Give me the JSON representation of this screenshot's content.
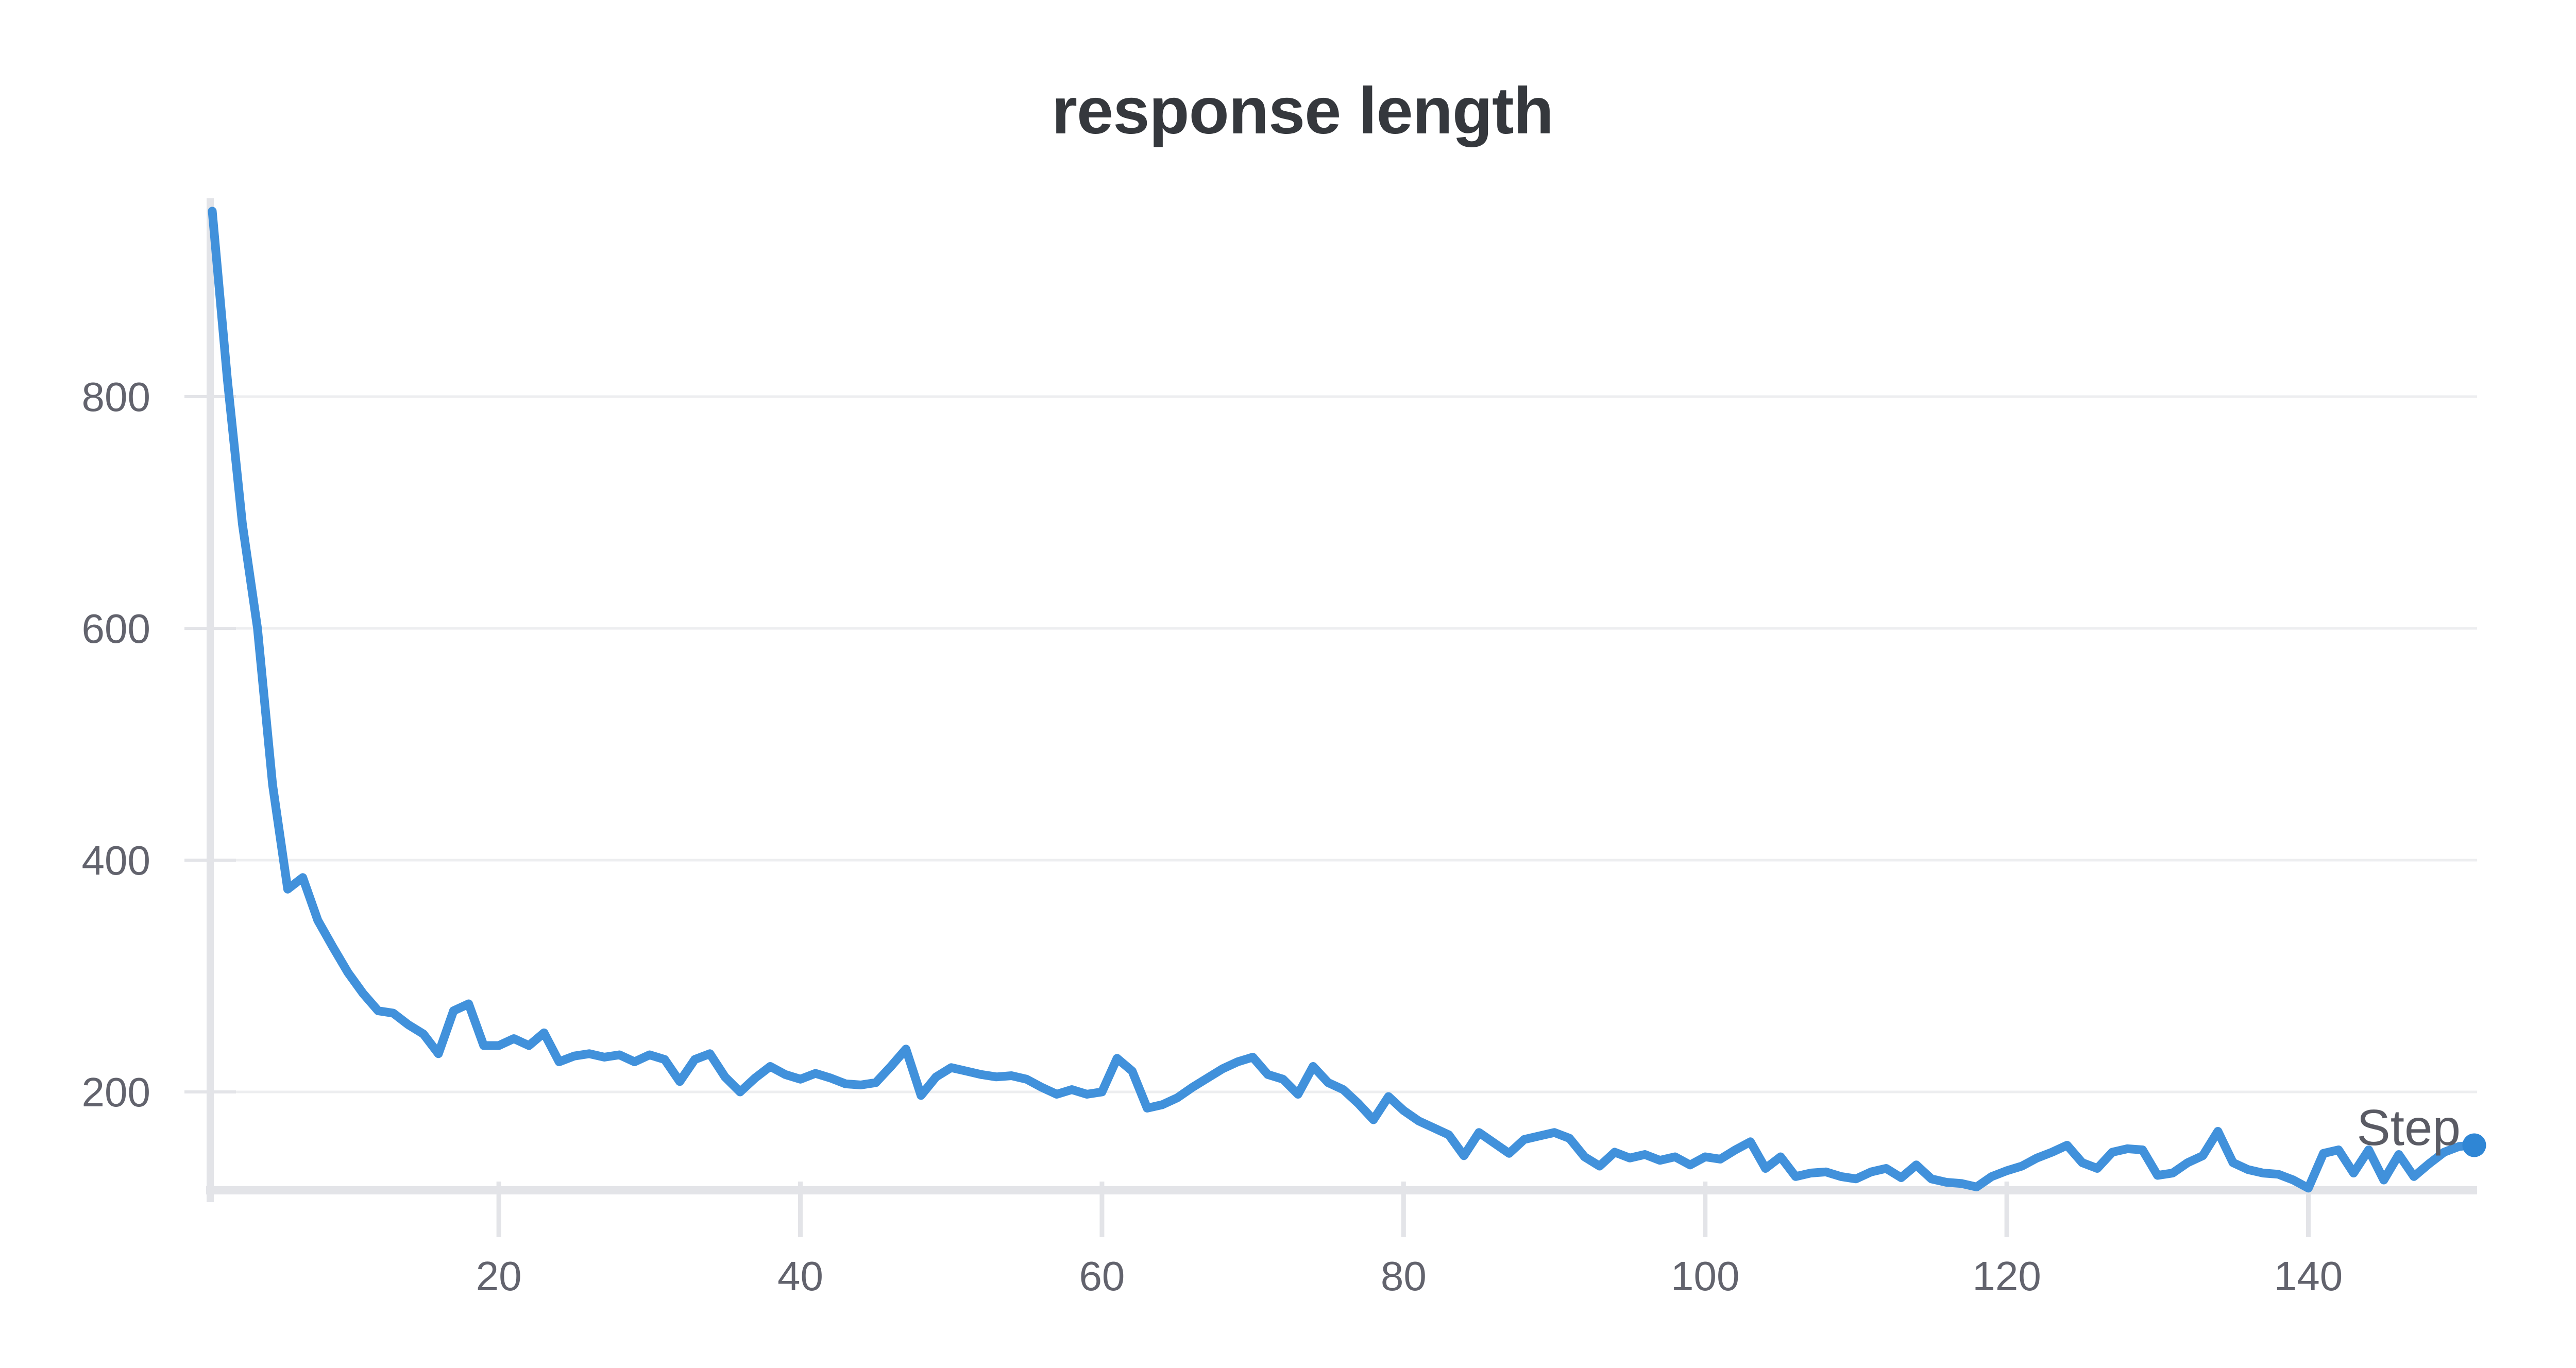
{
  "page": {
    "background": "#ffffff"
  },
  "chart_data": {
    "type": "line",
    "title": "response length",
    "xlabel": "Step",
    "ylabel": "",
    "legend": false,
    "grid": true,
    "x_start": 1,
    "x_step": 1,
    "xlim": [
      1,
      151
    ],
    "ylim": [
      117,
      965
    ],
    "x_ticks": [
      20,
      40,
      60,
      80,
      100,
      120,
      140
    ],
    "y_ticks": [
      200,
      400,
      600,
      800
    ],
    "line_color": "#4191db",
    "dot_color": "#2f86d5",
    "grid_color": "#edeef0",
    "axis_color": "#e3e4e8",
    "tick_label_color": "#62636d",
    "title_color": "#35383d",
    "xlabel_color": "#5a5b64",
    "series": [
      {
        "name": "response length",
        "values": [
          960,
          815,
          690,
          600,
          465,
          375,
          385,
          348,
          325,
          303,
          285,
          270,
          268,
          258,
          250,
          233,
          270,
          276,
          240,
          240,
          246,
          240,
          251,
          226,
          231,
          233,
          230,
          232,
          226,
          232,
          228,
          209,
          228,
          233,
          213,
          200,
          212,
          222,
          215,
          211,
          216,
          212,
          207,
          206,
          208,
          222,
          237,
          197,
          213,
          221,
          218,
          215,
          213,
          214,
          211,
          204,
          198,
          202,
          198,
          200,
          229,
          218,
          186,
          189,
          195,
          204,
          212,
          220,
          226,
          230,
          215,
          211,
          198,
          222,
          208,
          202,
          190,
          176,
          196,
          184,
          175,
          169,
          163,
          145,
          165,
          156,
          147,
          159,
          162,
          165,
          160,
          144,
          136,
          148,
          143,
          146,
          141,
          144,
          137,
          144,
          142,
          150,
          157,
          134,
          144,
          127,
          130,
          131,
          127,
          125,
          131,
          134,
          126,
          137,
          125,
          122,
          121,
          118,
          127,
          132,
          136,
          143,
          148,
          154,
          139,
          134,
          148,
          151,
          150,
          128,
          130,
          139,
          145,
          166,
          139,
          133,
          130,
          129,
          124,
          117,
          147,
          150,
          130,
          150,
          124,
          146,
          127,
          138,
          148,
          153,
          154
        ]
      }
    ]
  }
}
